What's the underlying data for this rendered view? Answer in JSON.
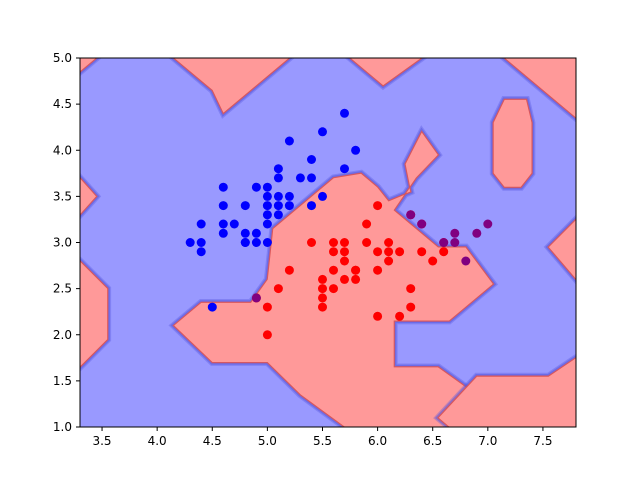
{
  "chart_data": {
    "type": "scatter",
    "title": "",
    "xlabel": "",
    "ylabel": "",
    "xlim": [
      3.3,
      7.8
    ],
    "ylim": [
      1.0,
      5.0
    ],
    "x_ticks": [
      "3.5",
      "4.0",
      "4.5",
      "5.0",
      "5.5",
      "6.0",
      "6.5",
      "7.0",
      "7.5"
    ],
    "y_ticks": [
      "1.0",
      "1.5",
      "2.0",
      "2.5",
      "3.0",
      "3.5",
      "4.0",
      "4.5",
      "5.0"
    ],
    "background": {
      "kind": "decision-contour",
      "class_a_color": "#9999ff",
      "class_b_color": "#ff9999",
      "class_a_line": "#5555dd",
      "class_b_line": "#dd5555",
      "class_b_regions": [
        [
          [
            3.3,
            4.85
          ],
          [
            3.45,
            5.0
          ],
          [
            3.3,
            5.0
          ]
        ],
        [
          [
            4.15,
            5.0
          ],
          [
            4.5,
            4.65
          ],
          [
            4.6,
            4.4
          ],
          [
            4.85,
            4.65
          ],
          [
            5.2,
            5.0
          ]
        ],
        [
          [
            5.75,
            5.0
          ],
          [
            6.05,
            4.7
          ],
          [
            6.4,
            5.0
          ]
        ],
        [
          [
            7.15,
            5.0
          ],
          [
            7.8,
            5.0
          ],
          [
            7.8,
            4.35
          ],
          [
            7.55,
            4.6
          ]
        ],
        [
          [
            7.05,
            4.3
          ],
          [
            7.15,
            4.55
          ],
          [
            7.35,
            4.55
          ],
          [
            7.4,
            4.3
          ],
          [
            7.4,
            3.75
          ],
          [
            7.3,
            3.6
          ],
          [
            7.15,
            3.6
          ],
          [
            7.05,
            3.75
          ]
        ],
        [
          [
            3.3,
            3.7
          ],
          [
            3.45,
            3.5
          ],
          [
            3.3,
            3.3
          ]
        ],
        [
          [
            3.3,
            2.8
          ],
          [
            3.55,
            2.5
          ],
          [
            3.55,
            1.95
          ],
          [
            3.3,
            1.65
          ]
        ],
        [
          [
            4.15,
            2.1
          ],
          [
            4.4,
            2.35
          ],
          [
            4.85,
            2.35
          ],
          [
            5.0,
            2.6
          ],
          [
            5.05,
            3.15
          ],
          [
            5.6,
            3.7
          ],
          [
            5.85,
            3.75
          ],
          [
            6.0,
            3.6
          ],
          [
            6.1,
            3.45
          ],
          [
            6.3,
            3.55
          ],
          [
            6.25,
            3.85
          ],
          [
            6.4,
            4.2
          ],
          [
            6.55,
            3.95
          ],
          [
            6.35,
            3.7
          ],
          [
            6.15,
            3.35
          ],
          [
            6.55,
            2.95
          ],
          [
            6.8,
            2.95
          ],
          [
            7.05,
            2.55
          ],
          [
            6.65,
            2.15
          ],
          [
            6.15,
            2.15
          ],
          [
            6.15,
            1.65
          ],
          [
            6.55,
            1.65
          ],
          [
            6.9,
            1.35
          ],
          [
            7.3,
            1.0
          ],
          [
            5.7,
            1.0
          ],
          [
            5.3,
            1.35
          ],
          [
            5.0,
            1.7
          ],
          [
            4.5,
            1.7
          ]
        ],
        [
          [
            6.55,
            1.1
          ],
          [
            6.9,
            1.55
          ],
          [
            7.55,
            1.55
          ],
          [
            7.8,
            1.75
          ],
          [
            7.8,
            1.0
          ],
          [
            6.65,
            1.0
          ]
        ],
        [
          [
            7.55,
            2.95
          ],
          [
            7.8,
            3.25
          ],
          [
            7.8,
            2.6
          ]
        ]
      ]
    },
    "series": [
      {
        "color": "#0000ff",
        "points": [
          [
            4.3,
            3.0
          ],
          [
            4.4,
            2.9
          ],
          [
            4.4,
            3.0
          ],
          [
            4.4,
            3.2
          ],
          [
            4.5,
            2.3
          ],
          [
            4.6,
            3.1
          ],
          [
            4.6,
            3.2
          ],
          [
            4.6,
            3.4
          ],
          [
            4.6,
            3.6
          ],
          [
            4.7,
            3.2
          ],
          [
            4.8,
            3.0
          ],
          [
            4.8,
            3.1
          ],
          [
            4.8,
            3.4
          ],
          [
            4.9,
            3.0
          ],
          [
            4.9,
            3.1
          ],
          [
            4.9,
            3.6
          ],
          [
            5.0,
            3.0
          ],
          [
            5.0,
            3.2
          ],
          [
            5.0,
            3.3
          ],
          [
            5.0,
            3.4
          ],
          [
            5.0,
            3.5
          ],
          [
            5.0,
            3.6
          ],
          [
            5.1,
            3.3
          ],
          [
            5.1,
            3.4
          ],
          [
            5.1,
            3.5
          ],
          [
            5.1,
            3.7
          ],
          [
            5.1,
            3.8
          ],
          [
            5.2,
            3.4
          ],
          [
            5.2,
            3.5
          ],
          [
            5.2,
            4.1
          ],
          [
            5.3,
            3.7
          ],
          [
            5.4,
            3.4
          ],
          [
            5.4,
            3.7
          ],
          [
            5.4,
            3.9
          ],
          [
            5.5,
            3.5
          ],
          [
            5.5,
            4.2
          ],
          [
            5.7,
            3.8
          ],
          [
            5.7,
            4.4
          ],
          [
            5.8,
            4.0
          ],
          [
            4.8,
            3.0
          ]
        ]
      },
      {
        "color": "#ff0000",
        "points": [
          [
            4.9,
            2.4
          ],
          [
            5.0,
            2.0
          ],
          [
            5.0,
            2.3
          ],
          [
            5.1,
            2.5
          ],
          [
            5.2,
            2.7
          ],
          [
            5.4,
            3.0
          ],
          [
            5.5,
            2.3
          ],
          [
            5.5,
            2.4
          ],
          [
            5.5,
            2.5
          ],
          [
            5.5,
            2.6
          ],
          [
            5.6,
            2.5
          ],
          [
            5.6,
            2.7
          ],
          [
            5.6,
            2.9
          ],
          [
            5.6,
            3.0
          ],
          [
            5.7,
            2.6
          ],
          [
            5.7,
            2.8
          ],
          [
            5.7,
            2.9
          ],
          [
            5.7,
            3.0
          ],
          [
            5.8,
            2.6
          ],
          [
            5.8,
            2.7
          ],
          [
            5.9,
            3.0
          ],
          [
            5.9,
            3.2
          ],
          [
            6.0,
            2.2
          ],
          [
            6.0,
            2.7
          ],
          [
            6.0,
            2.9
          ],
          [
            6.0,
            3.4
          ],
          [
            6.1,
            2.8
          ],
          [
            6.1,
            3.0
          ],
          [
            6.2,
            2.2
          ],
          [
            6.2,
            2.9
          ],
          [
            6.3,
            2.3
          ],
          [
            6.3,
            2.5
          ],
          [
            6.4,
            2.9
          ],
          [
            6.5,
            2.8
          ],
          [
            6.6,
            2.9
          ],
          [
            6.1,
            2.9
          ],
          [
            5.8,
            2.7
          ],
          [
            6.3,
            3.3
          ],
          [
            6.4,
            3.2
          ],
          [
            6.6,
            3.0
          ]
        ]
      },
      {
        "color": "#800080",
        "points": [
          [
            6.3,
            3.3
          ],
          [
            6.4,
            3.2
          ],
          [
            6.6,
            3.0
          ],
          [
            6.7,
            3.0
          ],
          [
            6.7,
            3.1
          ],
          [
            6.8,
            2.8
          ],
          [
            6.9,
            3.1
          ],
          [
            7.0,
            3.2
          ],
          [
            4.9,
            2.4
          ]
        ]
      }
    ]
  }
}
